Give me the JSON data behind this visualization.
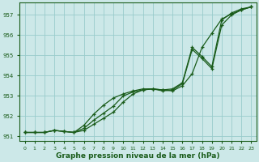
{
  "title": "Graphe pression niveau de la mer (hPa)",
  "bg_color": "#cce8e8",
  "grid_color": "#99cccc",
  "line_color": "#1a5c1a",
  "xlim": [
    -0.5,
    23.5
  ],
  "ylim": [
    950.8,
    957.6
  ],
  "yticks": [
    951,
    952,
    953,
    954,
    955,
    956,
    957
  ],
  "xticks": [
    0,
    1,
    2,
    3,
    4,
    5,
    6,
    7,
    8,
    9,
    10,
    11,
    12,
    13,
    14,
    15,
    16,
    17,
    18,
    19,
    20,
    21,
    22,
    23
  ],
  "series1": [
    951.2,
    951.2,
    951.2,
    951.3,
    951.25,
    951.2,
    951.3,
    951.6,
    951.9,
    952.2,
    952.7,
    953.1,
    953.3,
    953.35,
    953.3,
    953.25,
    953.5,
    954.1,
    955.4,
    956.1,
    956.8,
    957.05,
    957.25,
    957.4
  ],
  "series2": [
    951.2,
    951.2,
    951.2,
    951.3,
    951.25,
    951.2,
    951.4,
    951.8,
    952.15,
    952.5,
    953.0,
    953.2,
    953.3,
    953.35,
    953.25,
    953.3,
    953.6,
    955.3,
    954.85,
    954.35,
    956.5,
    957.0,
    957.25,
    957.4
  ],
  "series3": [
    951.2,
    951.2,
    951.2,
    951.3,
    951.25,
    951.2,
    951.55,
    952.1,
    952.55,
    952.9,
    953.1,
    953.25,
    953.35,
    953.35,
    953.3,
    953.35,
    953.65,
    955.4,
    954.95,
    954.45,
    956.75,
    957.1,
    957.3,
    957.4
  ]
}
